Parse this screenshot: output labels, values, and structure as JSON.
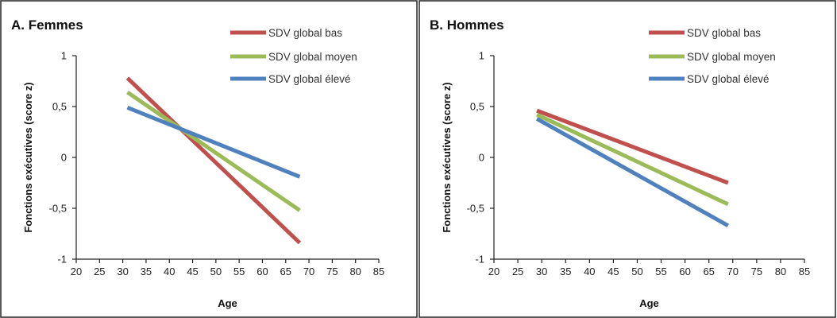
{
  "colors": {
    "low": "#c0504d",
    "mid": "#9bbb59",
    "high": "#4f81bd"
  },
  "chart_data": [
    {
      "type": "line",
      "title": "A. Femmes",
      "xlabel": "Age",
      "ylabel": "Fonctions exécutives (score z)",
      "xlim": [
        20,
        85
      ],
      "ylim": [
        -1,
        1
      ],
      "x_ticks": [
        20,
        25,
        30,
        35,
        40,
        45,
        50,
        55,
        60,
        65,
        70,
        75,
        80,
        85
      ],
      "x_tick_labels": [
        "20",
        "25",
        "30",
        "35",
        "40",
        "45",
        "50",
        "55",
        "60",
        "65",
        "70",
        "75",
        "80",
        "85"
      ],
      "y_ticks": [
        -1,
        -0.5,
        0,
        0.5,
        1
      ],
      "y_tick_labels": [
        "-1",
        "-0,5",
        "0",
        "0,5",
        "1"
      ],
      "legend_position": "top-right",
      "grid": false,
      "series": [
        {
          "name": "SDV global bas",
          "color": "#c0504d",
          "x": [
            31,
            68
          ],
          "y": [
            0.78,
            -0.84
          ]
        },
        {
          "name": "SDV global moyen",
          "color": "#9bbb59",
          "x": [
            31,
            68
          ],
          "y": [
            0.64,
            -0.52
          ]
        },
        {
          "name": "SDV global élevé",
          "color": "#4f81bd",
          "x": [
            31,
            68
          ],
          "y": [
            0.49,
            -0.19
          ]
        }
      ]
    },
    {
      "type": "line",
      "title": "B. Hommes",
      "xlabel": "Age",
      "ylabel": "Fonctions exécutives (score z)",
      "xlim": [
        20,
        85
      ],
      "ylim": [
        -1,
        1
      ],
      "x_ticks": [
        20,
        25,
        30,
        35,
        40,
        45,
        50,
        55,
        60,
        65,
        70,
        75,
        80,
        85
      ],
      "x_tick_labels": [
        "20",
        "25",
        "30",
        "35",
        "40",
        "45",
        "50",
        "55",
        "60",
        "65",
        "70",
        "75",
        "80",
        "85"
      ],
      "y_ticks": [
        -1,
        -0.5,
        0,
        0.5,
        1
      ],
      "y_tick_labels": [
        "-1",
        "-0,5",
        "0",
        "0,5",
        "1"
      ],
      "legend_position": "top-right",
      "grid": false,
      "series": [
        {
          "name": "SDV global bas",
          "color": "#c0504d",
          "x": [
            29,
            69
          ],
          "y": [
            0.46,
            -0.25
          ]
        },
        {
          "name": "SDV global moyen",
          "color": "#9bbb59",
          "x": [
            29,
            69
          ],
          "y": [
            0.42,
            -0.46
          ]
        },
        {
          "name": "SDV global élevé",
          "color": "#4f81bd",
          "x": [
            29,
            69
          ],
          "y": [
            0.38,
            -0.67
          ]
        }
      ]
    }
  ]
}
